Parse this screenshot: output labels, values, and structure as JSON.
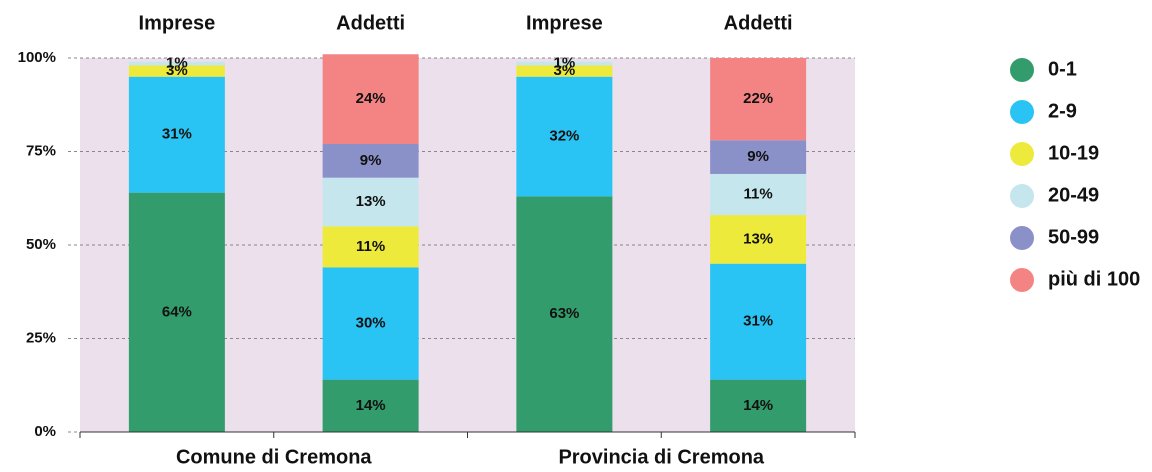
{
  "chart_data": {
    "type": "stacked_bar",
    "categories": [
      "Imprese",
      "Addetti",
      "Imprese",
      "Addetti"
    ],
    "groups": [
      "Comune di Cremona",
      "Provincia di Cremona"
    ],
    "ylim": [
      0,
      100
    ],
    "yticks": [
      {
        "value": 0,
        "label": "0%"
      },
      {
        "value": 25,
        "label": "25%"
      },
      {
        "value": 50,
        "label": "50%"
      },
      {
        "value": 75,
        "label": "75%"
      },
      {
        "value": 100,
        "label": "100%"
      }
    ],
    "grid": true,
    "legend": "right",
    "series": [
      {
        "name": "0-1",
        "color": "#339c6c",
        "values": [
          64,
          14,
          63,
          14
        ],
        "value_labels": [
          "64%",
          "14%",
          "63%",
          "14%"
        ]
      },
      {
        "name": "2-9",
        "color": "#2ac4f4",
        "values": [
          31,
          30,
          32,
          31
        ],
        "value_labels": [
          "31%",
          "30%",
          "32%",
          "31%"
        ]
      },
      {
        "name": "10-19",
        "color": "#eeea3c",
        "values": [
          3,
          11,
          3,
          13
        ],
        "value_labels": [
          "3%",
          "11%",
          "3%",
          "13%"
        ]
      },
      {
        "name": "20-49",
        "color": "#c4e6ec",
        "values": [
          1,
          13,
          1,
          11
        ],
        "value_labels": [
          "1%",
          "13%",
          "1%",
          "11%"
        ]
      },
      {
        "name": "50-99",
        "color": "#8a90c8",
        "values": [
          null,
          9,
          null,
          9
        ],
        "value_labels": [
          null,
          "9%",
          null,
          "9%"
        ]
      },
      {
        "name": "più di 100",
        "color": "#f48484",
        "values": [
          null,
          24,
          null,
          22
        ],
        "value_labels": [
          null,
          "24%",
          null,
          "22%"
        ]
      }
    ]
  }
}
